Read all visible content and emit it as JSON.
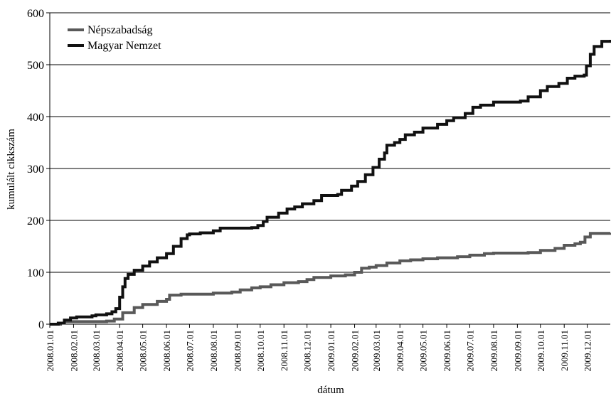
{
  "chart_data": {
    "type": "line",
    "title": "",
    "xlabel": "dátum",
    "ylabel": "kumulált cikkszám",
    "ylim": [
      0,
      600
    ],
    "yticks": [
      0,
      100,
      200,
      300,
      400,
      500,
      600
    ],
    "xlim": [
      "2008.01.01",
      "2009.12.31"
    ],
    "xtick_labels": [
      "2008.01.01",
      "2008.02.01",
      "2008.03.01",
      "2008.04.01",
      "2008.05.01",
      "2008.06.01",
      "2008.07.01",
      "2008.08.01",
      "2008.09.01",
      "2008.10.01",
      "2008.11.01",
      "2008.12.01",
      "2009.01.01",
      "2009.02.01",
      "2009.03.01",
      "2009.04.01",
      "2009.05.01",
      "2009.06.01",
      "2009.07.01",
      "2009.08.01",
      "2009.09.01",
      "2009.10.01",
      "2009.11.01",
      "2009.12.01"
    ],
    "grid": "horizontal",
    "legend_position": "top-left",
    "series": [
      {
        "name": "Népszabadság",
        "color": "#595959",
        "points": [
          [
            "2008.01.01",
            0
          ],
          [
            "2008.01.15",
            2
          ],
          [
            "2008.01.20",
            5
          ],
          [
            "2008.02.15",
            5
          ],
          [
            "2008.03.15",
            6
          ],
          [
            "2008.03.25",
            10
          ],
          [
            "2008.04.05",
            22
          ],
          [
            "2008.04.20",
            32
          ],
          [
            "2008.05.01",
            38
          ],
          [
            "2008.05.20",
            44
          ],
          [
            "2008.06.01",
            48
          ],
          [
            "2008.06.05",
            56
          ],
          [
            "2008.06.20",
            58
          ],
          [
            "2008.07.01",
            58
          ],
          [
            "2008.08.01",
            60
          ],
          [
            "2008.08.25",
            62
          ],
          [
            "2008.09.05",
            66
          ],
          [
            "2008.09.20",
            70
          ],
          [
            "2008.10.01",
            72
          ],
          [
            "2008.10.15",
            76
          ],
          [
            "2008.11.01",
            80
          ],
          [
            "2008.11.20",
            82
          ],
          [
            "2008.12.01",
            86
          ],
          [
            "2008.12.10",
            90
          ],
          [
            "2009.01.01",
            93
          ],
          [
            "2009.01.20",
            95
          ],
          [
            "2009.02.01",
            100
          ],
          [
            "2009.02.10",
            108
          ],
          [
            "2009.02.20",
            110
          ],
          [
            "2009.03.01",
            113
          ],
          [
            "2009.03.15",
            118
          ],
          [
            "2009.04.01",
            122
          ],
          [
            "2009.04.15",
            124
          ],
          [
            "2009.05.01",
            126
          ],
          [
            "2009.05.20",
            128
          ],
          [
            "2009.06.15",
            130
          ],
          [
            "2009.07.01",
            133
          ],
          [
            "2009.07.20",
            136
          ],
          [
            "2009.08.01",
            137
          ],
          [
            "2009.09.01",
            137
          ],
          [
            "2009.09.15",
            138
          ],
          [
            "2009.10.01",
            142
          ],
          [
            "2009.10.20",
            146
          ],
          [
            "2009.11.01",
            152
          ],
          [
            "2009.11.15",
            155
          ],
          [
            "2009.11.22",
            158
          ],
          [
            "2009.11.28",
            168
          ],
          [
            "2009.12.05",
            175
          ],
          [
            "2009.12.31",
            176
          ]
        ]
      },
      {
        "name": "Magyar Nemzet",
        "color": "#111111",
        "points": [
          [
            "2008.01.01",
            0
          ],
          [
            "2008.01.12",
            2
          ],
          [
            "2008.01.20",
            8
          ],
          [
            "2008.01.28",
            12
          ],
          [
            "2008.02.05",
            14
          ],
          [
            "2008.02.25",
            16
          ],
          [
            "2008.03.01",
            18
          ],
          [
            "2008.03.15",
            20
          ],
          [
            "2008.03.22",
            24
          ],
          [
            "2008.03.27",
            30
          ],
          [
            "2008.04.01",
            52
          ],
          [
            "2008.04.05",
            72
          ],
          [
            "2008.04.08",
            88
          ],
          [
            "2008.04.12",
            96
          ],
          [
            "2008.04.20",
            104
          ],
          [
            "2008.05.01",
            112
          ],
          [
            "2008.05.10",
            120
          ],
          [
            "2008.05.20",
            128
          ],
          [
            "2008.06.01",
            136
          ],
          [
            "2008.06.10",
            150
          ],
          [
            "2008.06.20",
            165
          ],
          [
            "2008.06.28",
            172
          ],
          [
            "2008.07.01",
            174
          ],
          [
            "2008.07.15",
            176
          ],
          [
            "2008.08.01",
            180
          ],
          [
            "2008.08.10",
            185
          ],
          [
            "2008.09.01",
            185
          ],
          [
            "2008.09.20",
            186
          ],
          [
            "2008.09.28",
            190
          ],
          [
            "2008.10.05",
            198
          ],
          [
            "2008.10.10",
            206
          ],
          [
            "2008.10.25",
            214
          ],
          [
            "2008.11.05",
            222
          ],
          [
            "2008.11.15",
            226
          ],
          [
            "2008.11.25",
            232
          ],
          [
            "2008.12.10",
            238
          ],
          [
            "2008.12.20",
            248
          ],
          [
            "2009.01.01",
            248
          ],
          [
            "2009.01.10",
            250
          ],
          [
            "2009.01.15",
            258
          ],
          [
            "2009.01.28",
            266
          ],
          [
            "2009.02.05",
            275
          ],
          [
            "2009.02.15",
            288
          ],
          [
            "2009.02.25",
            302
          ],
          [
            "2009.03.05",
            318
          ],
          [
            "2009.03.12",
            330
          ],
          [
            "2009.03.15",
            345
          ],
          [
            "2009.03.25",
            350
          ],
          [
            "2009.04.01",
            356
          ],
          [
            "2009.04.08",
            365
          ],
          [
            "2009.04.20",
            370
          ],
          [
            "2009.05.01",
            378
          ],
          [
            "2009.05.20",
            385
          ],
          [
            "2009.06.01",
            392
          ],
          [
            "2009.06.10",
            398
          ],
          [
            "2009.06.25",
            406
          ],
          [
            "2009.07.05",
            418
          ],
          [
            "2009.07.15",
            422
          ],
          [
            "2009.08.01",
            428
          ],
          [
            "2009.08.15",
            428
          ],
          [
            "2009.09.05",
            430
          ],
          [
            "2009.09.15",
            438
          ],
          [
            "2009.10.01",
            450
          ],
          [
            "2009.10.10",
            458
          ],
          [
            "2009.10.25",
            464
          ],
          [
            "2009.11.05",
            474
          ],
          [
            "2009.11.15",
            478
          ],
          [
            "2009.11.27",
            480
          ],
          [
            "2009.11.30",
            498
          ],
          [
            "2009.12.05",
            520
          ],
          [
            "2009.12.10",
            535
          ],
          [
            "2009.12.20",
            545
          ],
          [
            "2009.12.31",
            548
          ]
        ]
      }
    ]
  }
}
